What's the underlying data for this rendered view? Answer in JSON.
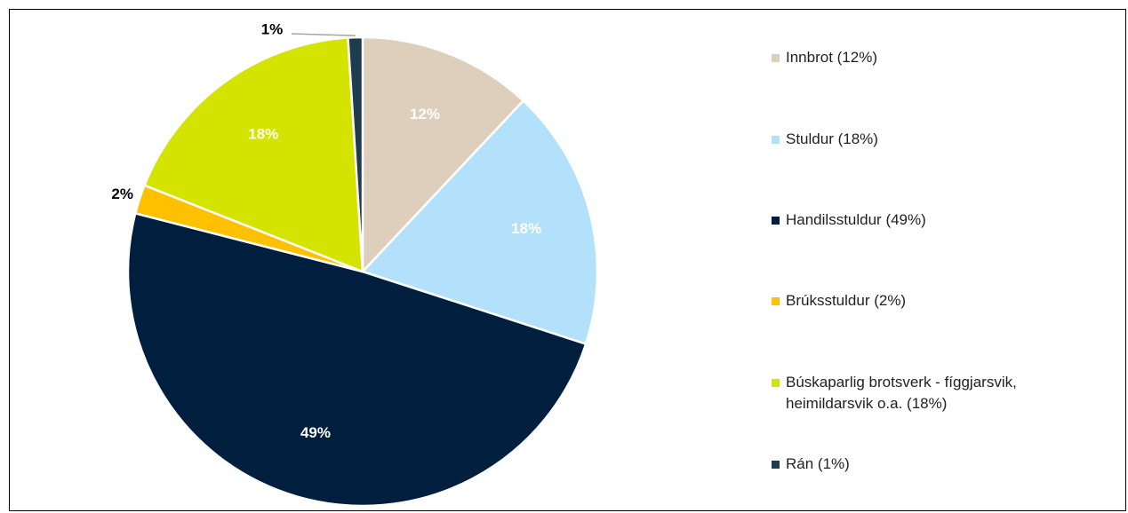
{
  "chart_data": {
    "type": "pie",
    "categories": [
      "Innbrot (12%)",
      "Stuldur (18%)",
      "Handilsstuldur (49%)",
      "Brúksstuldur (2%)",
      "Búskaparlig brotsverk - fíggjarsvik, heimildarsvik o.a. (18%)",
      "Rán (1%)"
    ],
    "values": [
      12,
      18,
      49,
      2,
      18,
      1
    ],
    "value_labels": [
      "12%",
      "18%",
      "49%",
      "2%",
      "18%",
      "1%"
    ],
    "colors": [
      "#ddcfbb",
      "#b3e1fb",
      "#001e3e",
      "#ffc000",
      "#d5e300",
      "#1e3c4d"
    ],
    "legend": "right"
  }
}
